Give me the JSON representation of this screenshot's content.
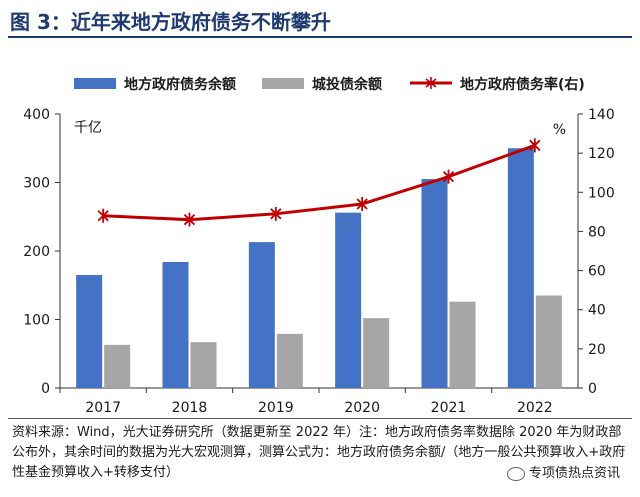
{
  "header": {
    "title": "图 3：近年来地方政府债务不断攀升"
  },
  "chart_data": {
    "type": "bar",
    "categories": [
      "2017",
      "2018",
      "2019",
      "2020",
      "2021",
      "2022"
    ],
    "series": [
      {
        "name": "地方政府债务余额",
        "type": "bar",
        "axis": "left",
        "color": "#4472c4",
        "values": [
          165,
          184,
          213,
          256,
          305,
          350
        ]
      },
      {
        "name": "城投债余额",
        "type": "bar",
        "axis": "left",
        "color": "#a6a6a6",
        "values": [
          63,
          67,
          79,
          102,
          126,
          135
        ]
      },
      {
        "name": "地方政府债务率(右)",
        "type": "line",
        "axis": "right",
        "color": "#c00000",
        "values": [
          88,
          86,
          89,
          94,
          108,
          124
        ]
      }
    ],
    "left_axis": {
      "unit_label": "千亿",
      "ylim": [
        0,
        400
      ],
      "ticks": [
        "0",
        "100",
        "200",
        "300",
        "400"
      ]
    },
    "right_axis": {
      "unit_label": "%",
      "ylim": [
        0,
        140
      ],
      "ticks": [
        "0",
        "20",
        "40",
        "60",
        "80",
        "100",
        "120",
        "140"
      ]
    },
    "legend_position": "top",
    "grid": false
  },
  "footer": {
    "source_note": "资料来源：Wind，光大证券研究所（数据更新至 2022 年）注：地方政府债务率数据除 2020 年为财政部公布外，其余时间的数据为光大宏观测算，测算公式为：地方政府债务余额/（地方一般公共预算收入+政府性基金预算收入+转移支付）",
    "watermark": "专项债热点资讯"
  }
}
